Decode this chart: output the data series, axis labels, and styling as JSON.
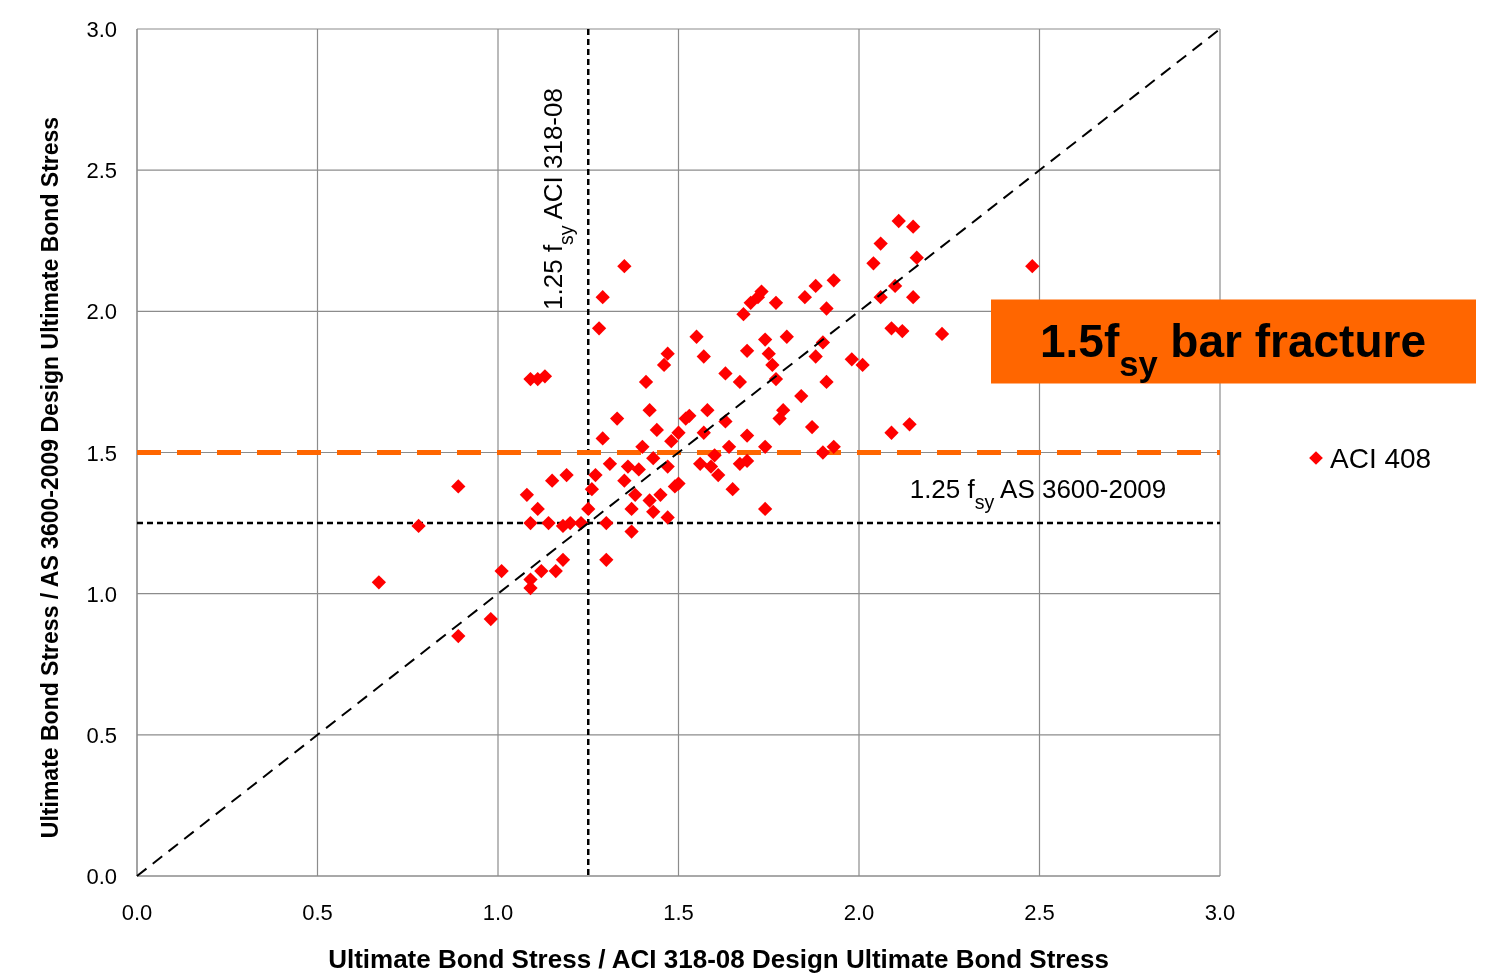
{
  "chart_data": {
    "type": "scatter",
    "xlabel": "Ultimate Bond Stress / ACI 318-08 Design Ultimate Bond Stress",
    "ylabel": "Ultimate Bond Stress / AS 3600-2009 Design Ultimate Bond Stress",
    "xlim": [
      0,
      3
    ],
    "ylim": [
      0,
      3
    ],
    "xticks": [
      {
        "value": 0,
        "label": "0.0"
      },
      0.5,
      {
        "value": 1,
        "label": "1.0"
      },
      1.5,
      {
        "value": 2,
        "label": "2.0"
      },
      2.5,
      {
        "value": 3,
        "label": "3.0"
      }
    ],
    "yticks": [
      {
        "value": 0,
        "label": "0.0"
      },
      0.5,
      {
        "value": 1,
        "label": "1.0"
      },
      1.5,
      {
        "value": 2,
        "label": "2.0"
      },
      2.5,
      {
        "value": 3,
        "label": "3.0"
      }
    ],
    "grid": true,
    "legend": "right",
    "series": [
      {
        "name": "ACI 408",
        "color": "#ff0000",
        "marker": "diamond",
        "x": [
          0.67,
          0.78,
          0.89,
          0.89,
          0.98,
          1.01,
          1.08,
          1.09,
          1.09,
          1.09,
          1.11,
          1.12,
          1.09,
          1.11,
          1.13,
          1.14,
          1.15,
          1.16,
          1.18,
          1.18,
          1.19,
          1.2,
          1.23,
          1.25,
          1.26,
          1.27,
          1.29,
          1.28,
          1.29,
          1.3,
          1.3,
          1.35,
          1.31,
          1.33,
          1.35,
          1.36,
          1.37,
          1.37,
          1.38,
          1.39,
          1.4,
          1.41,
          1.42,
          1.42,
          1.43,
          1.43,
          1.44,
          1.45,
          1.46,
          1.47,
          1.47,
          1.47,
          1.48,
          1.49,
          1.5,
          1.5,
          1.52,
          1.53,
          1.55,
          1.56,
          1.57,
          1.57,
          1.58,
          1.59,
          1.6,
          1.61,
          1.63,
          1.63,
          1.64,
          1.65,
          1.67,
          1.67,
          1.68,
          1.69,
          1.69,
          1.69,
          1.7,
          1.72,
          1.73,
          1.74,
          1.74,
          1.74,
          1.75,
          1.76,
          1.77,
          1.77,
          1.78,
          1.79,
          1.8,
          1.84,
          1.85,
          1.87,
          1.88,
          1.88,
          1.9,
          1.9,
          1.91,
          1.91,
          1.93,
          1.93,
          1.98,
          2.01,
          2.04,
          2.06,
          2.06,
          2.09,
          2.09,
          2.1,
          2.11,
          2.12,
          2.14,
          2.15,
          2.15,
          2.16,
          2.23,
          2.48
        ],
        "values": [
          1.04,
          1.24,
          1.38,
          0.85,
          0.91,
          1.08,
          1.35,
          1.05,
          1.02,
          1.25,
          1.3,
          1.08,
          1.76,
          1.76,
          1.77,
          1.25,
          1.4,
          1.08,
          1.12,
          1.24,
          1.42,
          1.25,
          1.25,
          1.3,
          1.37,
          1.42,
          2.05,
          1.94,
          1.55,
          1.12,
          1.25,
          2.16,
          1.46,
          1.62,
          1.4,
          1.45,
          1.3,
          1.22,
          1.35,
          1.44,
          1.52,
          1.75,
          1.65,
          1.33,
          1.29,
          1.48,
          1.58,
          1.35,
          1.81,
          1.85,
          1.45,
          1.27,
          1.54,
          1.38,
          1.57,
          1.39,
          1.62,
          1.63,
          1.91,
          1.46,
          1.84,
          1.57,
          1.65,
          1.45,
          1.49,
          1.42,
          1.78,
          1.61,
          1.52,
          1.37,
          1.75,
          1.46,
          1.99,
          1.56,
          1.47,
          1.86,
          2.03,
          2.05,
          2.07,
          1.3,
          1.9,
          1.52,
          1.85,
          1.81,
          2.03,
          1.76,
          1.62,
          1.65,
          1.91,
          1.7,
          2.05,
          1.59,
          1.84,
          2.09,
          1.89,
          1.5,
          1.75,
          2.01,
          2.11,
          1.52,
          1.83,
          1.81,
          2.17,
          2.24,
          2.05,
          1.94,
          1.57,
          2.09,
          2.32,
          1.93,
          1.6,
          2.3,
          2.05,
          2.19,
          1.92,
          2.16
        ]
      },
      {
        "type": "line",
        "color": "#000000",
        "line_style": "dashed",
        "marker": "none",
        "x": [
          0,
          3
        ],
        "values": [
          0,
          3
        ]
      }
    ],
    "ref_lines": [
      {
        "axis": "x",
        "value": 1.25,
        "label": "1.25 f$_{sy}$   ACI 318-08",
        "color": "#000000",
        "line_style": "dashed"
      },
      {
        "axis": "y",
        "value": 1.25,
        "label": "1.25 f$_{sy}$   AS 3600-2009",
        "color": "#000000",
        "line_style": "dashed"
      },
      {
        "axis": "y",
        "value": 1.5,
        "label": "1.5f$_{sy}$ bar fracture",
        "color": "#ff6600",
        "line_style": "dashed"
      }
    ]
  }
}
